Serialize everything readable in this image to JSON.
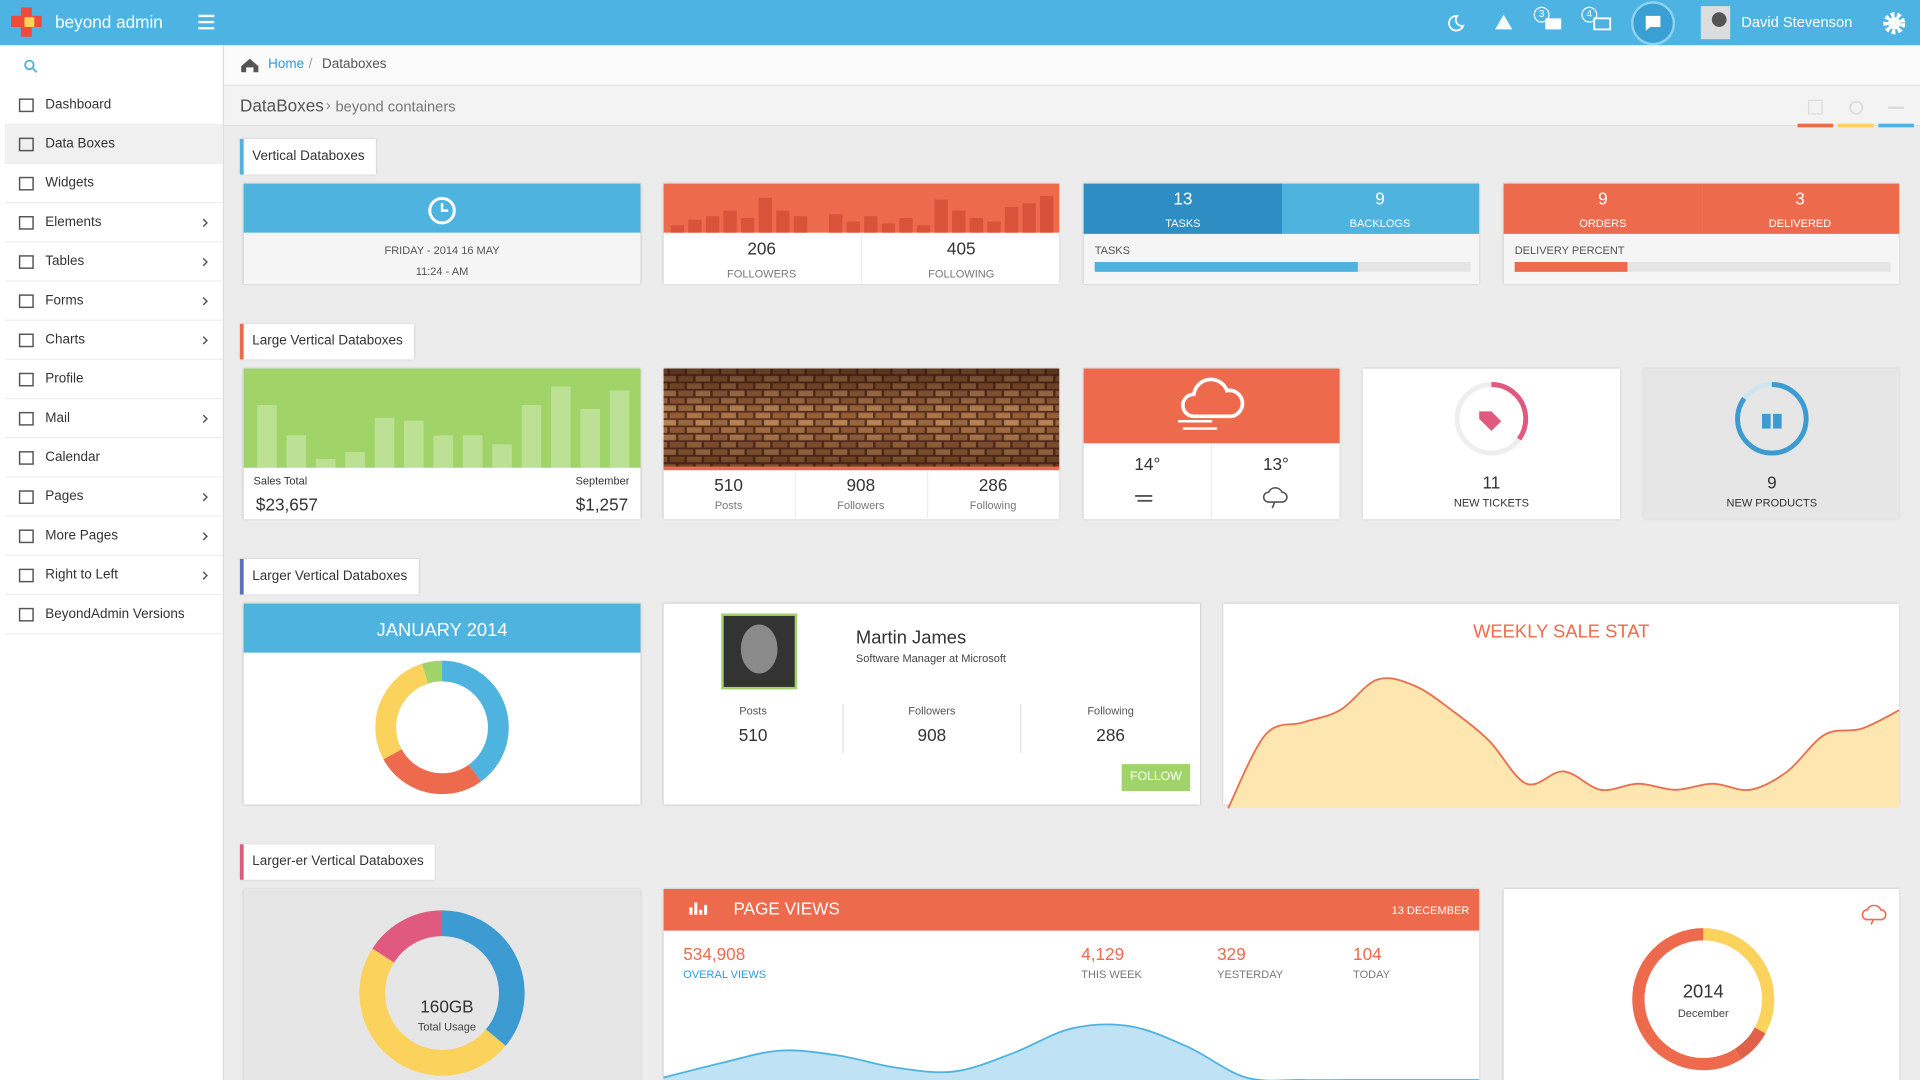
{
  "topbar": {
    "brand": "beyond admin",
    "mail_badge": "3",
    "task_badge": "4",
    "user": "David Stevenson"
  },
  "sidebar": {
    "items": [
      {
        "label": "Dashboard",
        "submenu": false
      },
      {
        "label": "Data Boxes",
        "submenu": false,
        "active": true
      },
      {
        "label": "Widgets",
        "submenu": false
      },
      {
        "label": "Elements",
        "submenu": true
      },
      {
        "label": "Tables",
        "submenu": true
      },
      {
        "label": "Forms",
        "submenu": true
      },
      {
        "label": "Charts",
        "submenu": true
      },
      {
        "label": "Profile",
        "submenu": false
      },
      {
        "label": "Mail",
        "submenu": true
      },
      {
        "label": "Calendar",
        "submenu": false
      },
      {
        "label": "Pages",
        "submenu": true
      },
      {
        "label": "More Pages",
        "submenu": true
      },
      {
        "label": "Right to Left",
        "submenu": true
      },
      {
        "label": "BeyondAdmin Versions",
        "submenu": false
      }
    ]
  },
  "breadcrumb": {
    "home": "Home",
    "separator": "/",
    "current": "Databoxes"
  },
  "page_header": {
    "title": "DataBoxes",
    "separator": "›",
    "subtitle": "beyond containers"
  },
  "sections": [
    "Vertical Databoxes",
    "Large Vertical Databoxes",
    "Larger Vertical Databoxes",
    "Larger-er Vertical Databoxes"
  ],
  "date_box": {
    "date": "FRIDAY - 2014 16 MAY",
    "time": "11:24 - AM"
  },
  "followers_box": {
    "bars": [
      20,
      35,
      45,
      60,
      40,
      95,
      60,
      45,
      0,
      50,
      30,
      45,
      25,
      40,
      20,
      90,
      60,
      40,
      30,
      70,
      80,
      100
    ],
    "followers": "206",
    "followers_label": "FOLLOWERS",
    "following": "405",
    "following_label": "FOLLOWING"
  },
  "tasks_box": {
    "tasks": "13",
    "tasks_label": "TASKS",
    "backlogs": "9",
    "backlogs_label": "BACKLOGS",
    "progress_label": "TASKS",
    "progress": 70
  },
  "orders_box": {
    "orders": "9",
    "orders_label": "ORDERS",
    "delivered": "3",
    "delivered_label": "DELIVERED",
    "progress_label": "DELIVERY PERCENT",
    "progress": 30
  },
  "sales_box": {
    "bars": [
      64,
      33,
      9,
      16,
      51,
      48,
      33,
      33,
      24,
      64,
      83,
      60,
      79
    ],
    "left_label": "Sales Total",
    "left_value": "$23,657",
    "right_label": "September",
    "right_value": "$1,257"
  },
  "image_box": {
    "stats": [
      {
        "value": "510",
        "label": "Posts"
      },
      {
        "value": "908",
        "label": "Followers"
      },
      {
        "value": "286",
        "label": "Following"
      }
    ]
  },
  "weather_box": {
    "temps": [
      "14°",
      "13°"
    ]
  },
  "tickets_box": {
    "value": "11",
    "label": "NEW TICKETS",
    "progress": 35
  },
  "products_box": {
    "value": "9",
    "label": "NEW PRODUCTS",
    "progress": 85
  },
  "calendar_box": {
    "title": "JANUARY 2014",
    "segments": [
      {
        "value": 40,
        "color": "#4fb3e0"
      },
      {
        "value": 27,
        "color": "#ed6a4c"
      },
      {
        "value": 28,
        "color": "#fbd25b"
      },
      {
        "value": 5,
        "color": "#a0d468"
      }
    ]
  },
  "profile_box": {
    "name": "Martin James",
    "role": "Software Manager at Microsoft",
    "stats": [
      {
        "value": "510",
        "label": "Posts"
      },
      {
        "value": "908",
        "label": "Followers"
      },
      {
        "value": "286",
        "label": "Following"
      }
    ],
    "button": "FOLLOW"
  },
  "sale_stat_box": {
    "title": "WEEKLY SALE STAT",
    "values": [
      0,
      60,
      70,
      80,
      105,
      100,
      80,
      55,
      20,
      30,
      15,
      20,
      15,
      20,
      15,
      30,
      60,
      65,
      80
    ]
  },
  "storage_box": {
    "value": "160GB",
    "label": "Total Usage",
    "segments": [
      {
        "value": 36,
        "color": "#3c9bd0"
      },
      {
        "value": 48,
        "color": "#fbd25b"
      },
      {
        "value": 16,
        "color": "#e05a7f"
      }
    ]
  },
  "page_views_box": {
    "title": "PAGE VIEWS",
    "date": "13 DECEMBER",
    "total": "534,908",
    "total_label": "OVERAL VIEWS",
    "stats": [
      {
        "value": "4,129",
        "label": "THIS WEEK"
      },
      {
        "value": "329",
        "label": "YESTERDAY"
      },
      {
        "value": "104",
        "label": "TODAY"
      }
    ],
    "values": [
      2,
      14,
      24,
      20,
      10,
      7,
      22,
      42,
      44,
      27,
      2,
      0,
      0,
      0,
      0
    ]
  },
  "year_box": {
    "year": "2014",
    "month": "December",
    "segments": [
      {
        "value": 33,
        "color": "#fbd25b"
      },
      {
        "value": 8,
        "color": "#e0604a"
      },
      {
        "value": 59,
        "color": "#ed6a4c"
      }
    ]
  }
}
